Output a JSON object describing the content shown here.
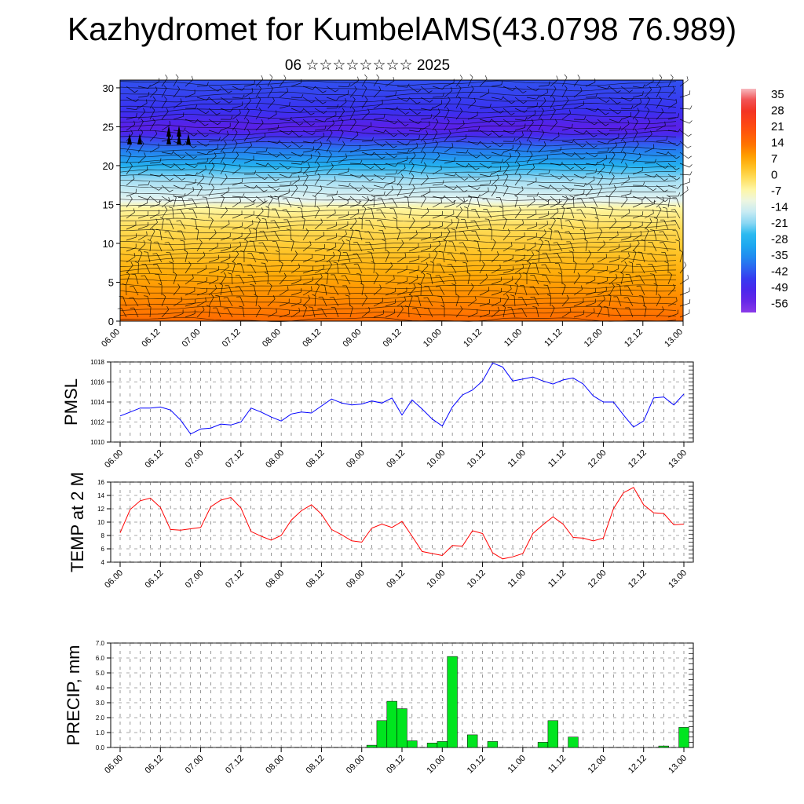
{
  "title": "Kazhydromet for KumbelAMS(43.0798 76.989)",
  "subtitle": "06 ☆☆☆☆☆☆☆☆ 2025",
  "time_ticks": [
    "06.00",
    "06.12",
    "07.00",
    "07.12",
    "08.00",
    "08.12",
    "09.00",
    "09.12",
    "10.00",
    "10.12",
    "11.00",
    "11.12",
    "12.00",
    "12.12",
    "13.00"
  ],
  "chart_data": [
    {
      "type": "heatmap",
      "title": "",
      "xlabel": "",
      "ylabel": "",
      "ylim": [
        0,
        31
      ],
      "ytick_labels": [
        "0",
        "5",
        "10",
        "15",
        "20",
        "25",
        "30"
      ],
      "colorbar_labels": [
        "35",
        "28",
        "21",
        "14",
        "7",
        "0",
        "-7",
        "-14",
        "-21",
        "-28",
        "-35",
        "-42",
        "-49",
        "-56"
      ],
      "colorbar_range": [
        -63,
        38
      ],
      "vertical_profile": [
        {
          "level": 0,
          "temp": 14
        },
        {
          "level": 3,
          "temp": 10
        },
        {
          "level": 6,
          "temp": 6
        },
        {
          "level": 9,
          "temp": 2
        },
        {
          "level": 12,
          "temp": -2
        },
        {
          "level": 14.5,
          "temp": -7
        },
        {
          "level": 15.5,
          "temp": -14
        },
        {
          "level": 18,
          "temp": -21
        },
        {
          "level": 20,
          "temp": -30
        },
        {
          "level": 22,
          "temp": -40
        },
        {
          "level": 24,
          "temp": -52
        },
        {
          "level": 25,
          "temp": -56
        },
        {
          "level": 27,
          "temp": -49
        },
        {
          "level": 31,
          "temp": -45
        }
      ],
      "colors": {
        "warm": "#ff5a00",
        "neutral": "#fff6a0",
        "cold": "#3e24e0"
      }
    },
    {
      "type": "line",
      "ylabel": "PMSL",
      "ylim": [
        1010,
        1018
      ],
      "ytick_labels": [
        "1010",
        "1012",
        "1014",
        "1016",
        "1018"
      ],
      "color": "#0000ff",
      "values": [
        1012.6,
        1013.0,
        1013.4,
        1013.4,
        1013.5,
        1013.2,
        1012.2,
        1010.8,
        1011.3,
        1011.4,
        1011.8,
        1011.7,
        1012.0,
        1013.4,
        1013.0,
        1012.5,
        1012.1,
        1012.8,
        1013.0,
        1012.9,
        1013.6,
        1014.3,
        1013.9,
        1013.7,
        1013.8,
        1014.1,
        1013.9,
        1014.4,
        1012.7,
        1014.2,
        1013.3,
        1012.3,
        1011.6,
        1013.5,
        1014.7,
        1015.2,
        1016.1,
        1017.9,
        1017.5,
        1016.1,
        1016.3,
        1016.5,
        1016.1,
        1015.8,
        1016.2,
        1016.4,
        1015.8,
        1014.6,
        1014.0,
        1014.0,
        1012.7,
        1011.5,
        1012.1,
        1014.4,
        1014.5,
        1013.7,
        1014.8
      ]
    },
    {
      "type": "line",
      "ylabel": "TEMP at 2 M",
      "ylim": [
        4,
        16
      ],
      "ytick_labels": [
        "4",
        "6",
        "8",
        "10",
        "12",
        "14",
        "16"
      ],
      "color": "#ff0000",
      "values": [
        8.4,
        11.9,
        13.2,
        13.6,
        12.2,
        8.9,
        8.8,
        9.0,
        9.2,
        12.3,
        13.3,
        13.7,
        12.1,
        8.6,
        7.9,
        7.3,
        8.0,
        10.3,
        11.7,
        12.6,
        11.2,
        8.9,
        8.1,
        7.2,
        7.0,
        9.1,
        9.7,
        9.2,
        10.1,
        7.9,
        5.6,
        5.3,
        5.0,
        6.5,
        6.4,
        8.7,
        8.3,
        5.4,
        4.5,
        4.8,
        5.3,
        8.3,
        9.6,
        10.8,
        9.7,
        7.7,
        7.6,
        7.2,
        7.6,
        12.0,
        14.4,
        15.2,
        12.6,
        11.4,
        11.3,
        9.6,
        9.7
      ]
    },
    {
      "type": "bar",
      "ylabel": "PRECIP, mm",
      "ylim": [
        0,
        7
      ],
      "ytick_labels": [
        "0.0",
        "1.0",
        "2.0",
        "3.0",
        "4.0",
        "5.0",
        "6.0",
        "7.0"
      ],
      "color": "#00e51f",
      "values": [
        0,
        0,
        0,
        0,
        0,
        0,
        0,
        0,
        0,
        0,
        0,
        0,
        0,
        0,
        0,
        0,
        0,
        0,
        0,
        0,
        0,
        0,
        0,
        0,
        0,
        0.15,
        1.8,
        3.1,
        2.6,
        0.45,
        0,
        0.3,
        0.4,
        6.1,
        0,
        0.85,
        0,
        0.4,
        0,
        0,
        0,
        0,
        0.35,
        1.8,
        0,
        0.7,
        0,
        0,
        0,
        0,
        0,
        0,
        0,
        0,
        0.1,
        0,
        1.35
      ]
    }
  ]
}
